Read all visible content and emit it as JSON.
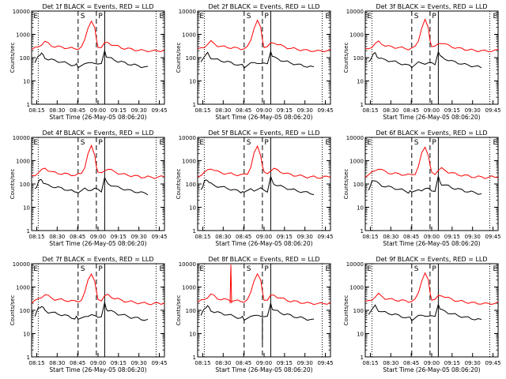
{
  "chart_data": {
    "type": "line",
    "scale": "log",
    "ylabel": "Counts/sec",
    "xlabel": "Start Time (26-May-05 08:06:20)",
    "ylim": [
      1,
      10000
    ],
    "y_ticks": [
      "1",
      "10",
      "100",
      "1000",
      "10000"
    ],
    "x_range_min": [
      0,
      40
    ],
    "x_ticks": [
      "08:15",
      "08:30",
      "08:45",
      "09:00",
      "09:15",
      "09:30",
      "09:45"
    ],
    "colors": {
      "events": "#000000",
      "lld": "#ff0000"
    },
    "marker_labels": {
      "dashed": "S",
      "solid": "P",
      "dotted": "E"
    },
    "panels": [
      {
        "title": "Det 1f BLACK = Events, RED = LLD",
        "letters": [
          "E",
          "S",
          "P",
          "E"
        ],
        "spike": false
      },
      {
        "title": "Det 2f BLACK = Events, RED = LLD",
        "letters": [
          "E",
          "S",
          "P",
          "E"
        ],
        "spike": false
      },
      {
        "title": "Det 3f BLACK = Events, RED = LLD",
        "letters": [
          "E",
          "S",
          "P",
          "E"
        ],
        "spike": false
      },
      {
        "title": "Det 4f BLACK = Events, RED = LLD",
        "letters": [
          "E",
          "S",
          "P",
          "E"
        ],
        "spike": false
      },
      {
        "title": "Det 5f BLACK = Events, RED = LLD",
        "letters": [
          "E",
          "S",
          "P",
          "E"
        ],
        "spike": false
      },
      {
        "title": "Det 6f BLACK = Events, RED = LLD",
        "letters": [
          "E",
          "S",
          "P",
          "E"
        ],
        "spike": false
      },
      {
        "title": "Det 7f BLACK = Events, RED = LLD",
        "letters": [
          "E",
          "S",
          "P",
          "E"
        ],
        "spike": false
      },
      {
        "title": "Det 8f BLACK = Events, RED = LLD",
        "letters": [
          "E",
          "S",
          "P",
          "E"
        ],
        "spike": true
      },
      {
        "title": "Det 9f BLACK = Events, RED = LLD",
        "letters": [
          "E",
          "S",
          "P",
          "E"
        ],
        "spike": false
      }
    ],
    "markers_min": {
      "dotted": [
        2,
        37.5
      ],
      "dashed": [
        14,
        19.5
      ],
      "solid": [
        22
      ]
    },
    "series": [
      {
        "name": "LLD",
        "color": "#ff0000",
        "x": [
          0,
          1,
          2,
          3,
          4,
          5,
          6,
          7,
          8,
          9,
          10,
          11,
          12,
          13,
          14,
          15,
          16,
          17,
          18,
          19,
          19.5,
          20,
          21,
          22,
          23,
          24,
          25,
          26,
          27,
          28,
          29,
          30,
          31,
          32,
          33,
          34,
          35,
          36,
          37,
          38,
          39,
          40
        ],
        "values": [
          220,
          250,
          300,
          380,
          480,
          400,
          330,
          300,
          290,
          280,
          270,
          260,
          250,
          240,
          250,
          280,
          550,
          2000,
          4000,
          1800,
          600,
          300,
          280,
          400,
          450,
          380,
          330,
          300,
          270,
          250,
          240,
          230,
          220,
          210,
          200,
          200,
          200,
          190,
          190,
          200,
          200,
          210
        ]
      },
      {
        "name": "Events",
        "color": "#000000",
        "x": [
          1,
          1.5,
          2,
          2.5,
          3,
          3.5,
          4,
          5,
          6,
          7,
          8,
          9,
          10,
          11,
          12,
          13,
          13.5,
          14,
          16,
          17,
          18,
          19,
          20,
          21,
          22,
          22.5,
          23,
          24,
          25,
          26,
          27,
          28,
          29,
          30,
          31,
          32,
          33,
          34,
          35
        ],
        "values": [
          60,
          80,
          120,
          140,
          150,
          120,
          100,
          85,
          80,
          75,
          70,
          65,
          60,
          55,
          50,
          45,
          50,
          40,
          60,
          55,
          58,
          62,
          55,
          50,
          200,
          120,
          100,
          90,
          80,
          70,
          65,
          60,
          55,
          50,
          48,
          45,
          42,
          40,
          38
        ]
      }
    ]
  }
}
